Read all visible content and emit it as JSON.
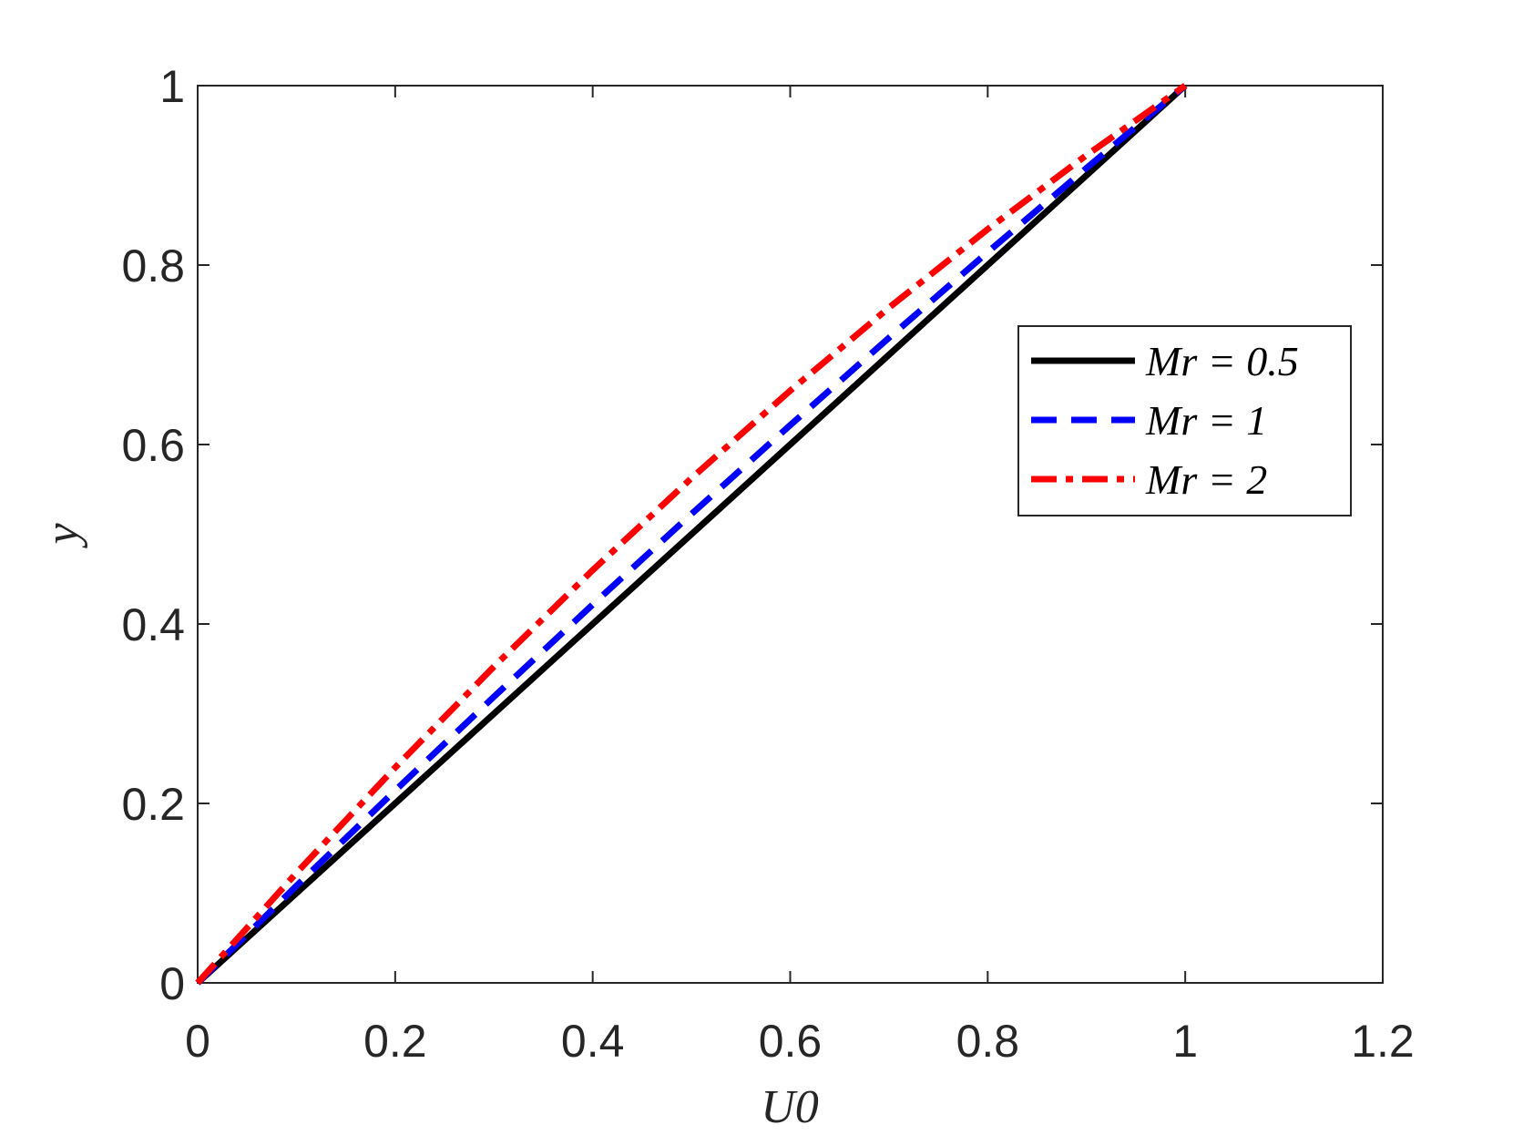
{
  "chart_data": {
    "type": "line",
    "xlabel": "U0",
    "ylabel": "y",
    "x": [
      0,
      0.1,
      0.2,
      0.3,
      0.4,
      0.5,
      0.6,
      0.7,
      0.8,
      0.9,
      1
    ],
    "series": [
      {
        "name": "Mr = 0.5",
        "color": "#000000",
        "dash": "solid",
        "values": [
          0,
          0.1,
          0.2,
          0.3,
          0.4,
          0.5,
          0.6,
          0.7,
          0.8,
          0.9,
          1
        ]
      },
      {
        "name": "Mr = 1",
        "color": "#0000ff",
        "dash": "dashed",
        "values": [
          0,
          0.1081,
          0.2144,
          0.3189,
          0.4216,
          0.5225,
          0.6216,
          0.7189,
          0.8144,
          0.9081,
          1
        ]
      },
      {
        "name": "Mr = 2",
        "color": "#ff0000",
        "dash": "dashdot",
        "values": [
          0,
          0.1225,
          0.24,
          0.3525,
          0.46,
          0.5625,
          0.66,
          0.7525,
          0.84,
          0.9225,
          1
        ]
      }
    ],
    "xlim": [
      0,
      1.2
    ],
    "xticks": [
      0,
      0.2,
      0.4,
      0.6,
      0.8,
      1,
      1.2
    ],
    "ylim": [
      0,
      1
    ],
    "yticks": [
      0,
      0.2,
      0.4,
      0.6,
      0.8,
      1
    ],
    "grid": false,
    "legend": "right"
  }
}
